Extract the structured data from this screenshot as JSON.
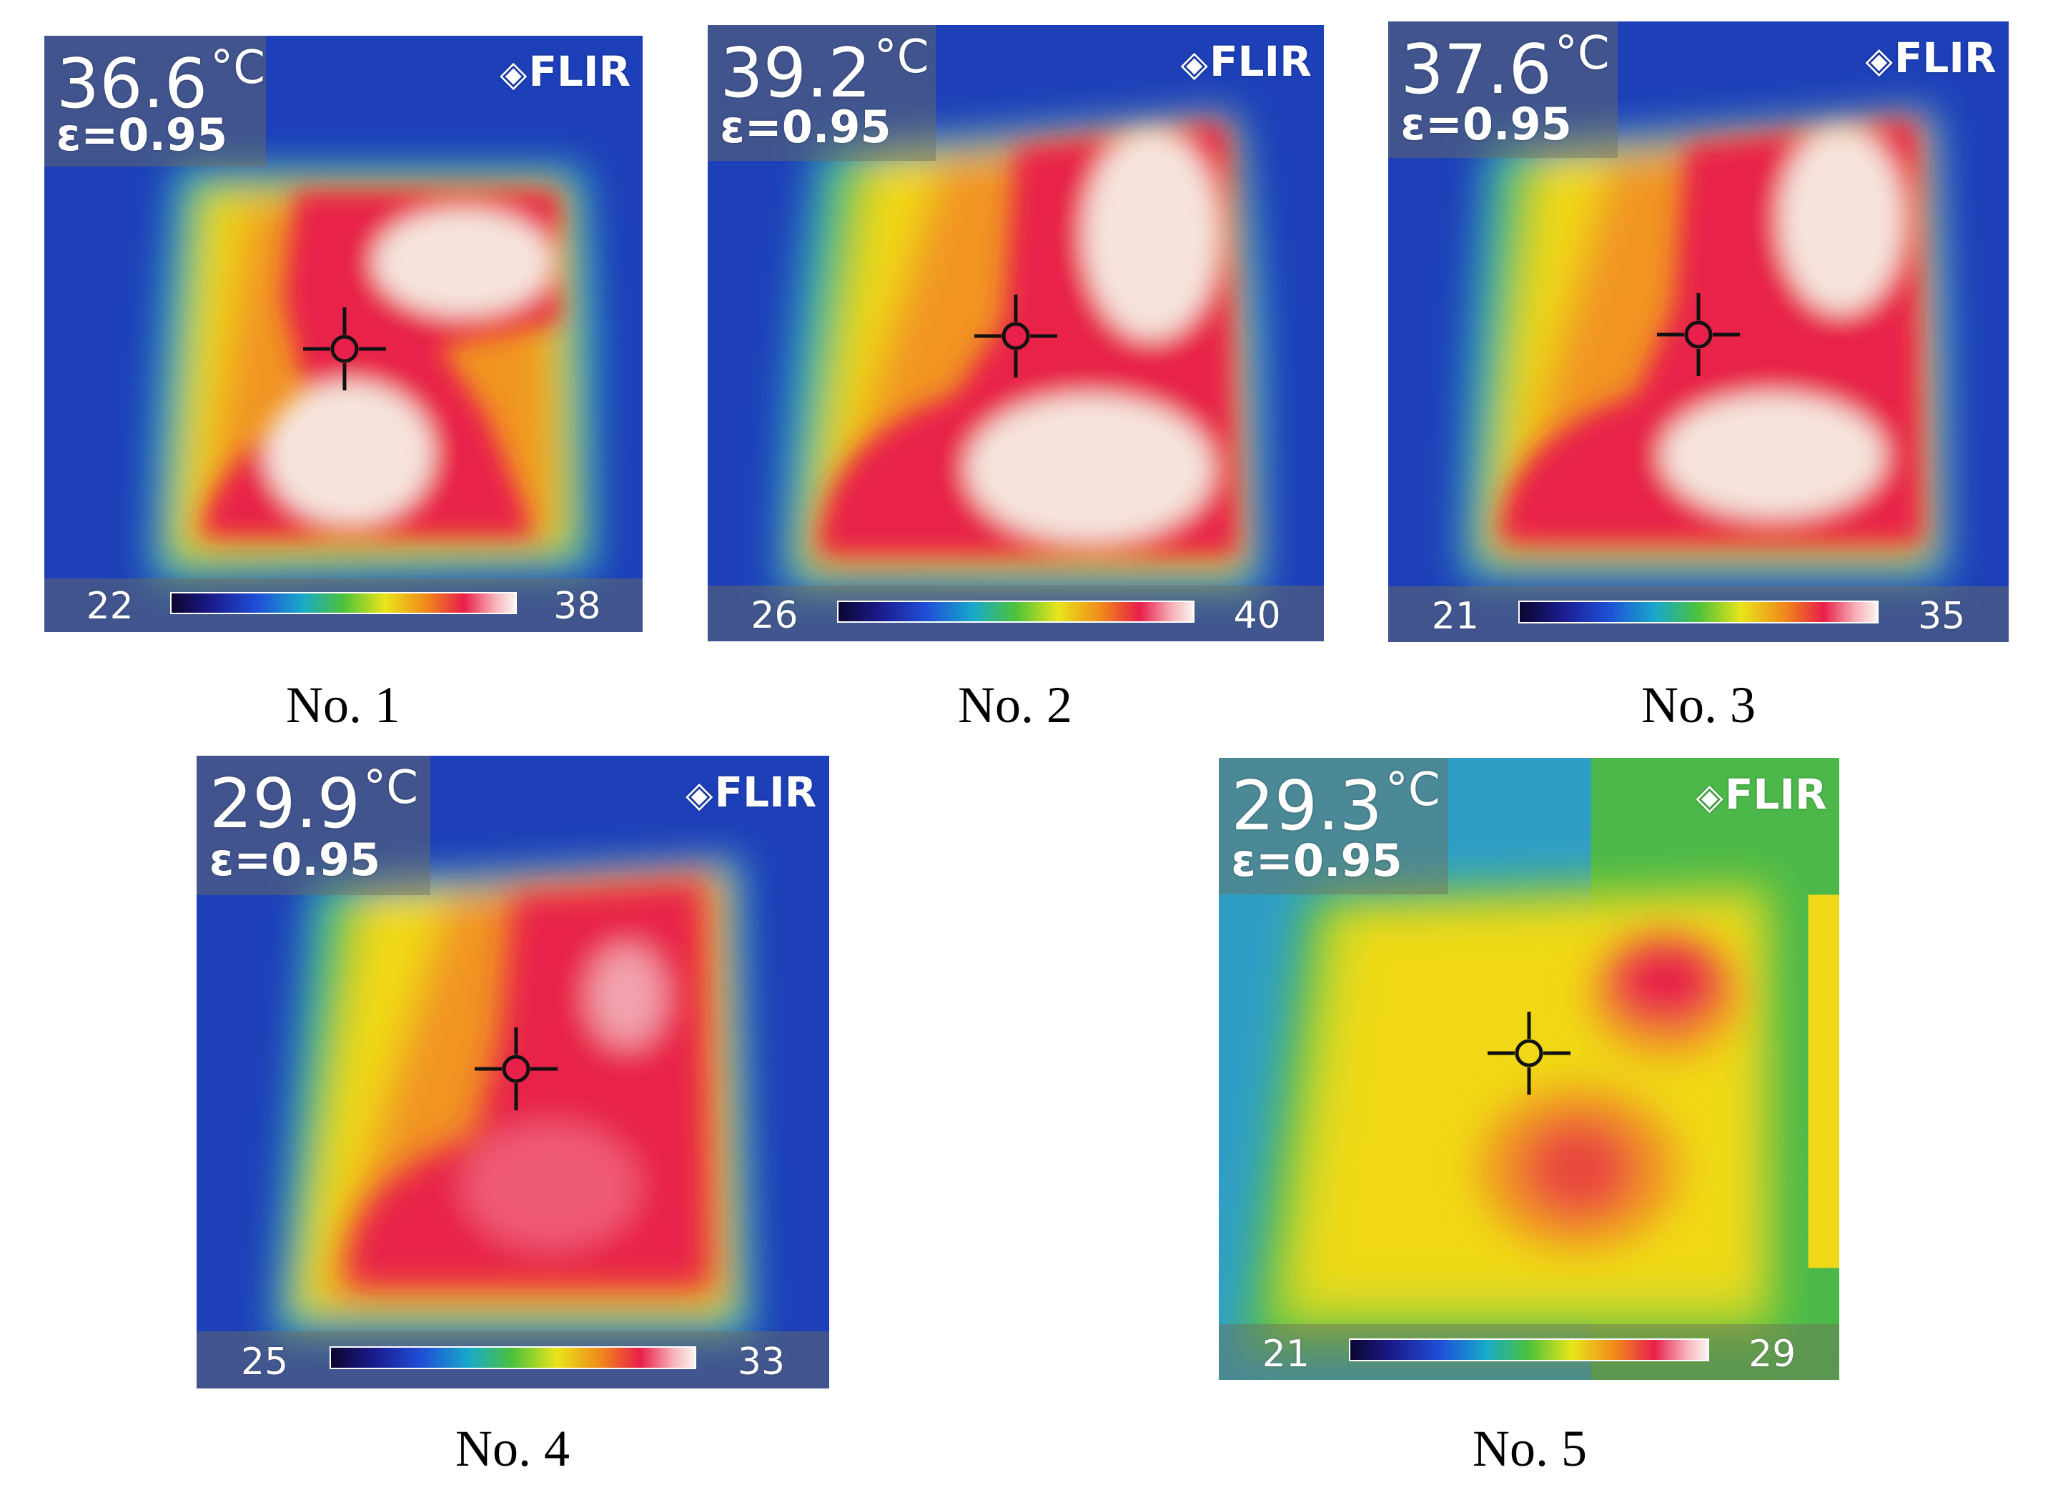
{
  "panels": [
    {
      "caption": "No. 1",
      "temperature": "36.6",
      "unit": "°C",
      "emissivity": "ε=0.95",
      "logo": "FLIR",
      "scale_min": "22",
      "scale_max": "38",
      "pattern": "high"
    },
    {
      "caption": "No. 2",
      "temperature": "39.2",
      "unit": "°C",
      "emissivity": "ε=0.95",
      "logo": "FLIR",
      "scale_min": "26",
      "scale_max": "40",
      "pattern": "high"
    },
    {
      "caption": "No. 3",
      "temperature": "37.6",
      "unit": "°C",
      "emissivity": "ε=0.95",
      "logo": "FLIR",
      "scale_min": "21",
      "scale_max": "35",
      "pattern": "high"
    },
    {
      "caption": "No. 4",
      "temperature": "29.9",
      "unit": "°C",
      "emissivity": "ε=0.95",
      "logo": "FLIR",
      "scale_min": "25",
      "scale_max": "33",
      "pattern": "medium"
    },
    {
      "caption": "No. 5",
      "temperature": "29.3",
      "unit": "°C",
      "emissivity": "ε=0.95",
      "logo": "FLIR",
      "scale_min": "21",
      "scale_max": "29",
      "pattern": "low"
    }
  ],
  "colors": {
    "cold": "#1d3fb8",
    "cool": "#2fb7c9",
    "mild": "#57c23c",
    "warm": "#f0d818",
    "orange": "#f19422",
    "hot": "#e8204a",
    "hottest": "#f5e4dc"
  },
  "logo_icon": "flir-logo-icon",
  "crosshair_icon": "crosshair-icon"
}
